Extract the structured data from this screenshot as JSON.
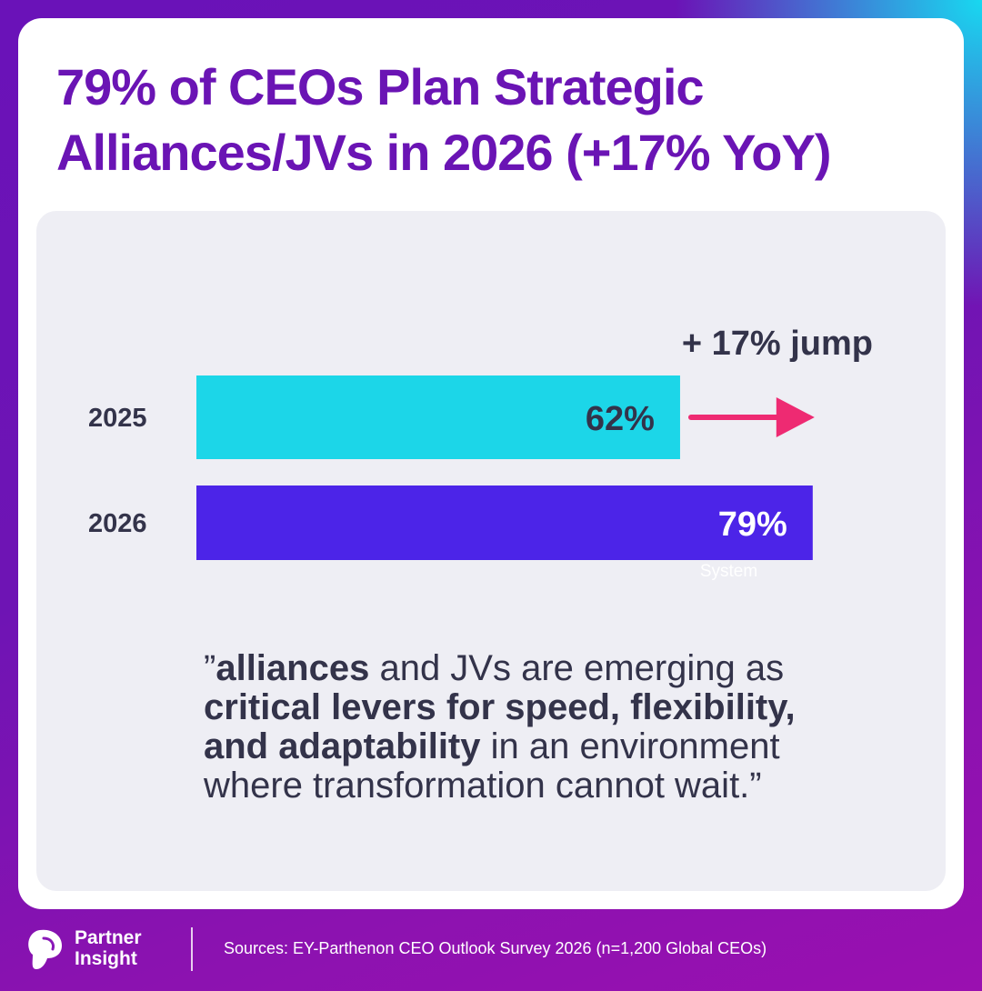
{
  "title_line1": "79% of CEOs Plan Strategic",
  "title_line2": "Alliances/JVs in 2026 (+17% YoY)",
  "chart_data": {
    "type": "bar",
    "orientation": "horizontal",
    "categories": [
      "2025",
      "2026"
    ],
    "values": [
      62,
      79
    ],
    "value_labels": [
      "62%",
      "79%"
    ],
    "xlim": [
      0,
      100
    ],
    "bar_colors": [
      "#1cd6e8",
      "#4c24e8"
    ],
    "annotation": "+ 17% jump",
    "annotation_color": "#ee2a72",
    "faint_label": "System"
  },
  "quote": {
    "open": "”",
    "b1": "alliances",
    "t1": " and JVs are emerging as ",
    "b2": "critical levers for speed, flexibility, and adaptability",
    "t2": " in an environment where transformation cannot wait.",
    "close": "”"
  },
  "footer": {
    "brand_line1": "Partner",
    "brand_line2": "Insight",
    "logo_icon": "partner-insight-logo-icon",
    "sources": "Sources:  EY-Parthenon CEO Outlook Survey 2026 (n=1,200 Global CEOs)"
  }
}
